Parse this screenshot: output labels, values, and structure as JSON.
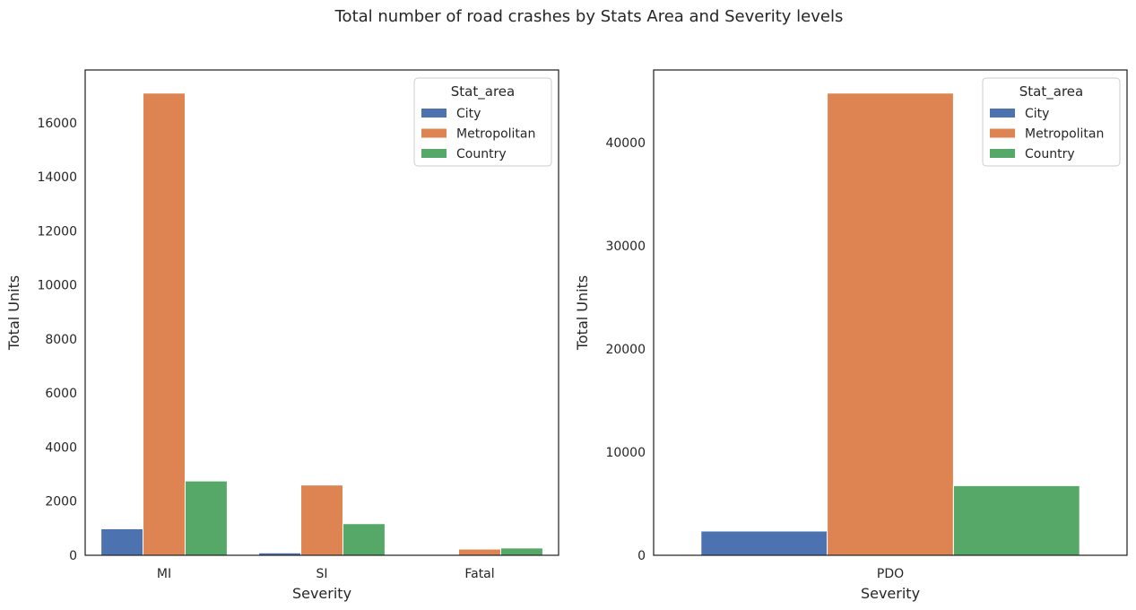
{
  "figure": {
    "title": "Total number of road crashes by Stats Area and Severity levels"
  },
  "chart_data": [
    {
      "type": "bar",
      "title": "",
      "xlabel": "Severity",
      "ylabel": "Total Units",
      "categories": [
        "MI",
        "SI",
        "Fatal"
      ],
      "series": [
        {
          "name": "City",
          "values": [
            980,
            90,
            10
          ],
          "color": "#4c72b0"
        },
        {
          "name": "Metropolitan",
          "values": [
            17100,
            2600,
            230
          ],
          "color": "#dd8452"
        },
        {
          "name": "Country",
          "values": [
            2750,
            1170,
            270
          ],
          "color": "#55a868"
        }
      ],
      "ylim": [
        0,
        17955
      ],
      "yticks": [
        0,
        2000,
        4000,
        6000,
        8000,
        10000,
        12000,
        14000,
        16000
      ],
      "legend": {
        "title": "Stat_area",
        "placement": "top-right"
      },
      "grid": false
    },
    {
      "type": "bar",
      "title": "",
      "xlabel": "Severity",
      "ylabel": "Total Units",
      "categories": [
        "PDO"
      ],
      "series": [
        {
          "name": "City",
          "values": [
            2350
          ],
          "color": "#4c72b0"
        },
        {
          "name": "Metropolitan",
          "values": [
            44800
          ],
          "color": "#dd8452"
        },
        {
          "name": "Country",
          "values": [
            6750
          ],
          "color": "#55a868"
        }
      ],
      "ylim": [
        0,
        47040
      ],
      "yticks": [
        0,
        10000,
        20000,
        30000,
        40000
      ],
      "legend": {
        "title": "Stat_area",
        "placement": "top-right"
      },
      "grid": false
    }
  ]
}
